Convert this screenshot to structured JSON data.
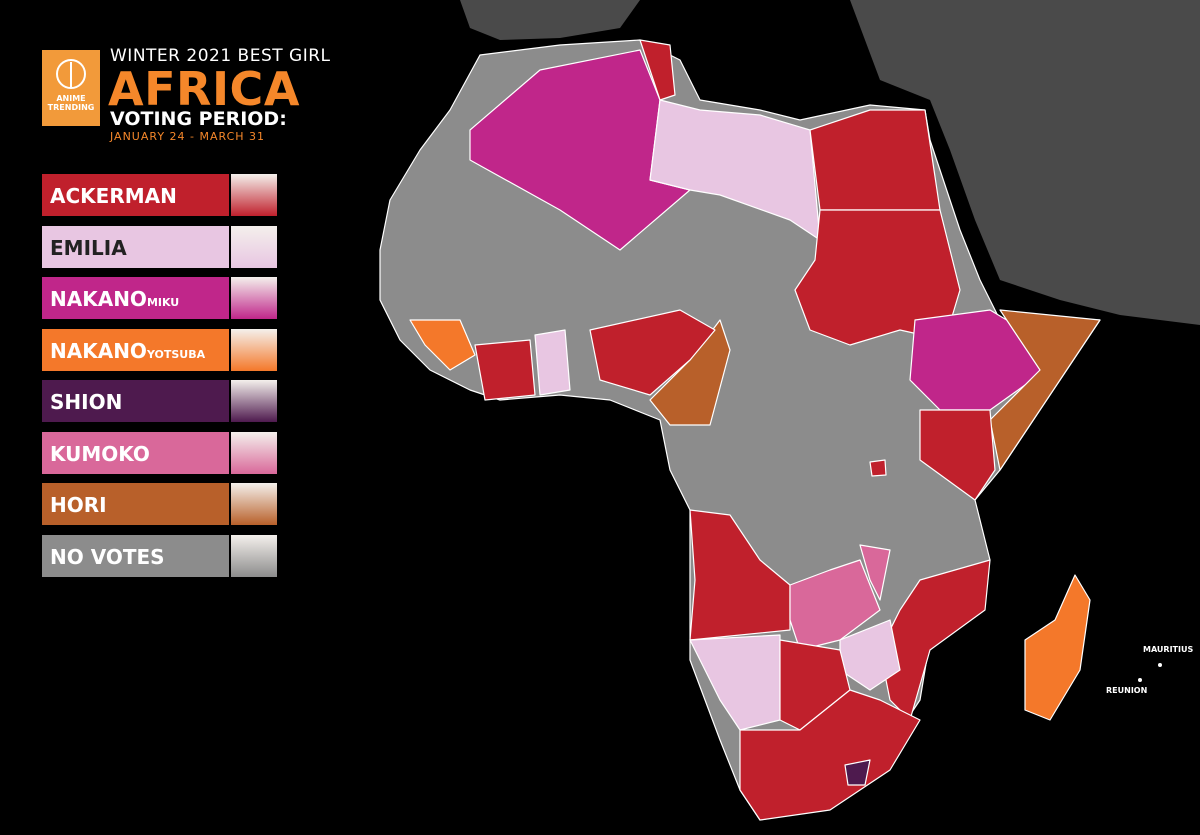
{
  "header": {
    "logo": [
      "ANIME",
      "TRENDING"
    ],
    "subtitle": "WINTER 2021 BEST GIRL",
    "title": "AFRICA",
    "period_label": "VOTING PERIOD:",
    "period": "JANUARY 24 - MARCH 31"
  },
  "legend": [
    {
      "name": "ACKERMAN",
      "color": "#c0202c"
    },
    {
      "name": "EMILIA",
      "color": "#e8c6e2"
    },
    {
      "name": "NAKANO",
      "suffix": "MIKU",
      "color": "#c0268a"
    },
    {
      "name": "NAKANO",
      "suffix": "YOTSUBA",
      "color": "#f4782a"
    },
    {
      "name": "SHION",
      "color": "#4e1a4e"
    },
    {
      "name": "KUMOKO",
      "color": "#d9689a"
    },
    {
      "name": "HORI",
      "color": "#b8602a"
    },
    {
      "name": "NO VOTES",
      "color": "#8c8c8c"
    }
  ],
  "map_labels": [
    "MAURITIUS",
    "REUNION"
  ]
}
